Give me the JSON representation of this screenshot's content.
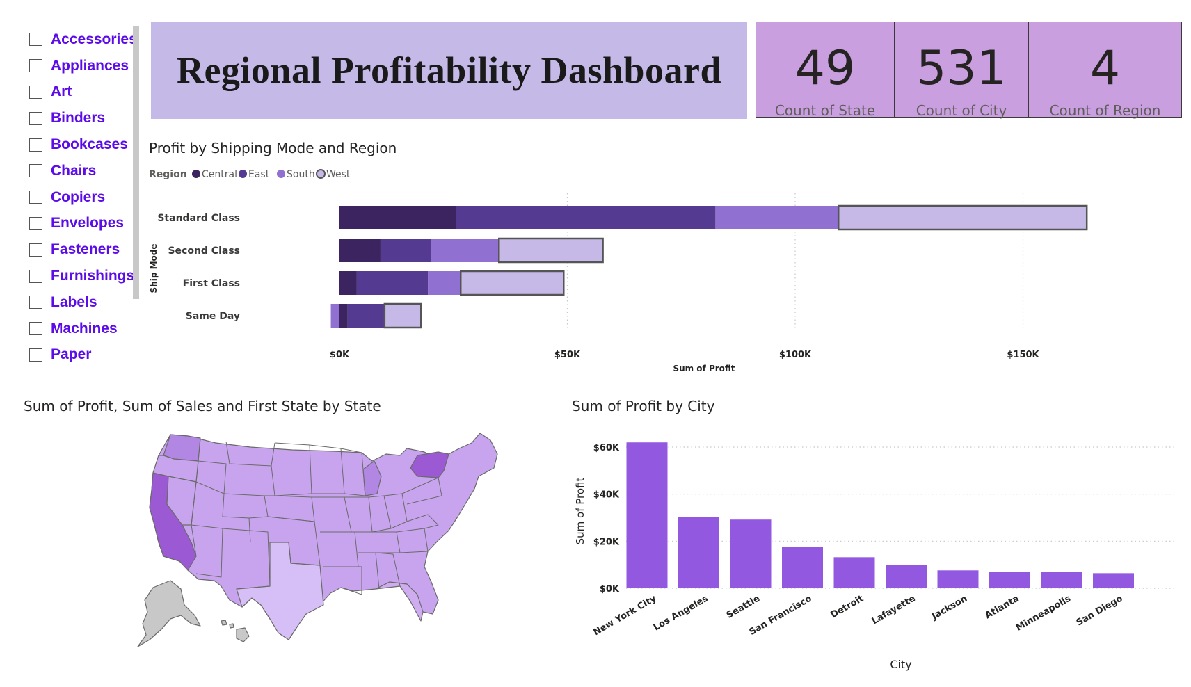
{
  "slicer": {
    "items": [
      {
        "label": "Accessories"
      },
      {
        "label": "Appliances"
      },
      {
        "label": "Art"
      },
      {
        "label": "Binders"
      },
      {
        "label": "Bookcases"
      },
      {
        "label": "Chairs"
      },
      {
        "label": "Copiers"
      },
      {
        "label": "Envelopes"
      },
      {
        "label": "Fasteners"
      },
      {
        "label": "Furnishings"
      },
      {
        "label": "Labels"
      },
      {
        "label": "Machines"
      },
      {
        "label": "Paper"
      }
    ]
  },
  "header": {
    "title": "Regional Profitability Dashboard"
  },
  "cards": [
    {
      "value": "49",
      "label": "Count of State"
    },
    {
      "value": "531",
      "label": "Count of City"
    },
    {
      "value": "4",
      "label": "Count of Region"
    }
  ],
  "colors": {
    "central": "#3b2460",
    "east": "#553a91",
    "south": "#9070d0",
    "west": "#c6b9e8",
    "city_bar": "#9358e0",
    "card_bg": "#c99fdf",
    "banner_bg": "#c5b9e8",
    "slicer_text": "#5b0ce8"
  },
  "shipping_chart": {
    "title": "Profit by Shipping Mode and Region",
    "legend_title": "Region"
  },
  "map": {
    "title": "Sum of Profit, Sum of Sales and First State by State"
  },
  "city_chart": {
    "title": "Sum of Profit by City"
  },
  "chart_data": [
    {
      "type": "bar",
      "orientation": "horizontal",
      "stacked": true,
      "title": "Profit by Shipping Mode and Region",
      "xlabel": "Sum of Profit",
      "ylabel": "Ship Mode",
      "legend_title": "Region",
      "legend_position": "top-left",
      "categories": [
        "Standard Class",
        "Second Class",
        "First Class",
        "Same Day"
      ],
      "series": [
        {
          "name": "Central",
          "values": [
            25500,
            9000,
            3800,
            1800
          ]
        },
        {
          "name": "East",
          "values": [
            57000,
            11000,
            15600,
            8100
          ]
        },
        {
          "name": "South",
          "values": [
            27000,
            15000,
            7200,
            -1900
          ]
        },
        {
          "name": "West",
          "values": [
            54500,
            22800,
            22600,
            8000
          ]
        }
      ],
      "xlim": [
        0,
        185000
      ],
      "xticks": [
        "$0K",
        "$50K",
        "$100K",
        "$150K"
      ],
      "xtick_values": [
        0,
        50000,
        100000,
        150000
      ],
      "grid": true
    },
    {
      "type": "bar",
      "title": "Sum of Profit by City",
      "xlabel": "City",
      "ylabel": "Sum of Profit",
      "categories": [
        "New York City",
        "Los Angeles",
        "Seattle",
        "San Francisco",
        "Detroit",
        "Lafayette",
        "Jackson",
        "Atlanta",
        "Minneapolis",
        "San Diego"
      ],
      "values": [
        62000,
        30400,
        29200,
        17500,
        13200,
        10000,
        7600,
        7000,
        6800,
        6400
      ],
      "ylim": [
        0,
        64000
      ],
      "yticks": [
        "$0K",
        "$20K",
        "$40K",
        "$60K"
      ],
      "ytick_values": [
        0,
        20000,
        40000,
        60000
      ],
      "grid": true
    }
  ]
}
